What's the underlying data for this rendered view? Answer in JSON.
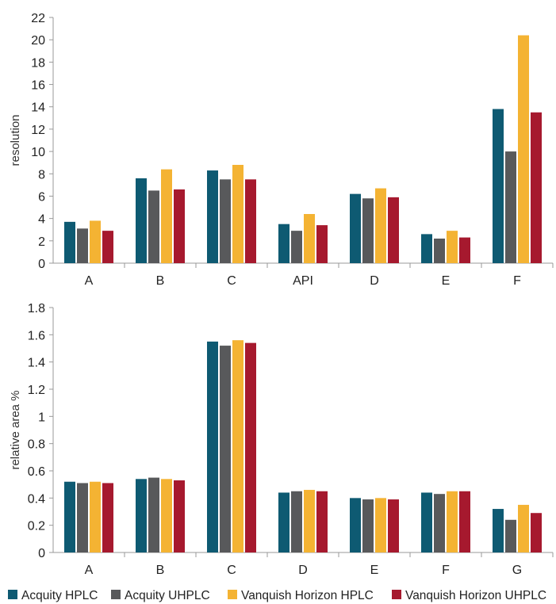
{
  "chart_data": [
    {
      "type": "bar",
      "ylabel": "resolution",
      "ylim": [
        0,
        22
      ],
      "yticks": [
        "0",
        "2",
        "4",
        "6",
        "8",
        "10",
        "12",
        "14",
        "16",
        "18",
        "20",
        "22"
      ],
      "categories": [
        "A",
        "B",
        "C",
        "API",
        "D",
        "E",
        "F"
      ],
      "series": [
        {
          "name": "Acquity HPLC",
          "values": [
            3.7,
            7.6,
            8.3,
            3.5,
            6.2,
            2.6,
            13.8
          ]
        },
        {
          "name": "Acquity UHPLC",
          "values": [
            3.1,
            6.5,
            7.5,
            2.9,
            5.8,
            2.2,
            10.0
          ]
        },
        {
          "name": "Vanquish Horizon HPLC",
          "values": [
            3.8,
            8.4,
            8.8,
            4.4,
            6.7,
            2.9,
            20.4
          ]
        },
        {
          "name": "Vanquish Horizon UHPLC",
          "values": [
            2.9,
            6.6,
            7.5,
            3.4,
            5.9,
            2.3,
            13.5
          ]
        }
      ]
    },
    {
      "type": "bar",
      "ylabel": "relative area %",
      "ylim": [
        0,
        1.8
      ],
      "yticks": [
        "0",
        "0.2",
        "0.4",
        "0.6",
        "0.8",
        "1",
        "1.2",
        "1.4",
        "1.6",
        "1.8"
      ],
      "categories": [
        "A",
        "B",
        "C",
        "D",
        "E",
        "F",
        "G"
      ],
      "series": [
        {
          "name": "Acquity HPLC",
          "values": [
            0.52,
            0.54,
            1.55,
            0.44,
            0.4,
            0.44,
            0.32
          ]
        },
        {
          "name": "Acquity UHPLC",
          "values": [
            0.51,
            0.55,
            1.52,
            0.45,
            0.39,
            0.43,
            0.24
          ]
        },
        {
          "name": "Vanquish Horizon HPLC",
          "values": [
            0.52,
            0.54,
            1.56,
            0.46,
            0.4,
            0.45,
            0.35
          ]
        },
        {
          "name": "Vanquish Horizon UHPLC",
          "values": [
            0.51,
            0.53,
            1.54,
            0.45,
            0.39,
            0.45,
            0.29
          ]
        }
      ]
    }
  ],
  "legend": [
    {
      "label": "Acquity HPLC",
      "color": "#0e5a72"
    },
    {
      "label": "Acquity UHPLC",
      "color": "#58595b"
    },
    {
      "label": "Vanquish Horizon HPLC",
      "color": "#f4b333"
    },
    {
      "label": "Vanquish Horizon UHPLC",
      "color": "#a6192e"
    }
  ]
}
